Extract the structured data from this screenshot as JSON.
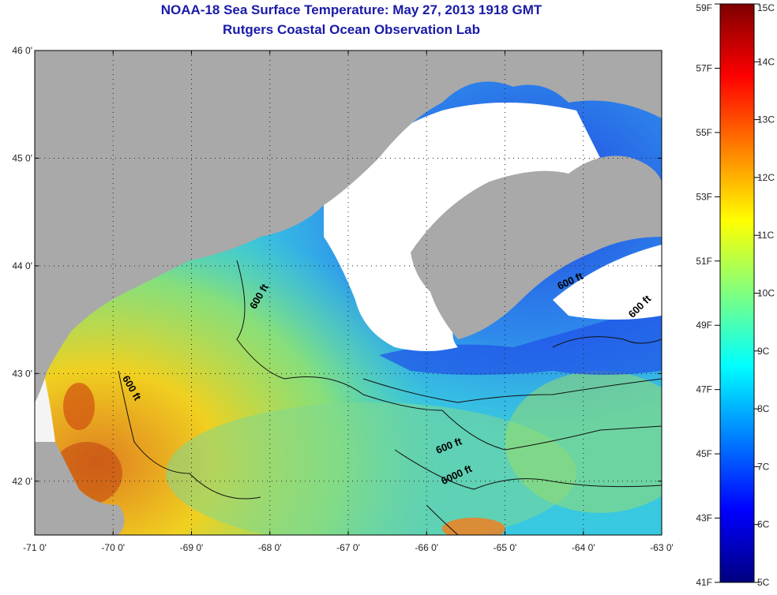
{
  "title": {
    "line1": "NOAA-18 Sea Surface Temperature:  May 27, 2013 1918 GMT",
    "line2": "Rutgers Coastal Ocean Observation Lab"
  },
  "map": {
    "lon_range": [
      -71,
      -63
    ],
    "lat_range": [
      41.5,
      46
    ],
    "lon_ticks": [
      {
        "value": -71,
        "label": "-71 0'"
      },
      {
        "value": -70,
        "label": "-70 0'"
      },
      {
        "value": -69,
        "label": "-69 0'"
      },
      {
        "value": -68,
        "label": "-68 0'"
      },
      {
        "value": -67,
        "label": "-67 0'"
      },
      {
        "value": -66,
        "label": "-66 0'"
      },
      {
        "value": -65,
        "label": "-65 0'"
      },
      {
        "value": -64,
        "label": "-64 0'"
      },
      {
        "value": -63,
        "label": "-63 0'"
      }
    ],
    "lat_ticks": [
      {
        "value": 46,
        "label": "46 0'"
      },
      {
        "value": 45,
        "label": "45 0'"
      },
      {
        "value": 44,
        "label": "44 0'"
      },
      {
        "value": 43,
        "label": "43 0'"
      },
      {
        "value": 42,
        "label": "42 0'"
      }
    ],
    "contour_labels": [
      {
        "text": "600 ft",
        "lon": -68.1,
        "lat": 43.7,
        "angle": -60
      },
      {
        "text": "600 ft",
        "lon": -69.8,
        "lat": 42.85,
        "angle": 60
      },
      {
        "text": "600 ft",
        "lon": -64.15,
        "lat": 43.83,
        "angle": -25
      },
      {
        "text": "600 ft",
        "lon": -63.25,
        "lat": 43.6,
        "angle": -45
      },
      {
        "text": "600 ft",
        "lon": -65.7,
        "lat": 42.3,
        "angle": -22
      },
      {
        "text": "6000 ft",
        "lon": -65.6,
        "lat": 42.03,
        "angle": -25
      }
    ],
    "colors": {
      "land": "#a9a9a9",
      "cloud": "#ffffff"
    }
  },
  "colorbar": {
    "fahrenheit_labels": [
      "59F",
      "57F",
      "55F",
      "53F",
      "51F",
      "49F",
      "47F",
      "45F",
      "43F",
      "41F"
    ],
    "celsius_labels": [
      "15C",
      "14C",
      "13C",
      "12C",
      "11C",
      "10C",
      "9C",
      "8C",
      "7C",
      "6C",
      "5C"
    ],
    "range_c": [
      5,
      15
    ],
    "colors": [
      "#00007f",
      "#0000ff",
      "#007fff",
      "#00ffff",
      "#7fff7f",
      "#ffff00",
      "#ff7f00",
      "#ff0000",
      "#7f0000"
    ]
  }
}
